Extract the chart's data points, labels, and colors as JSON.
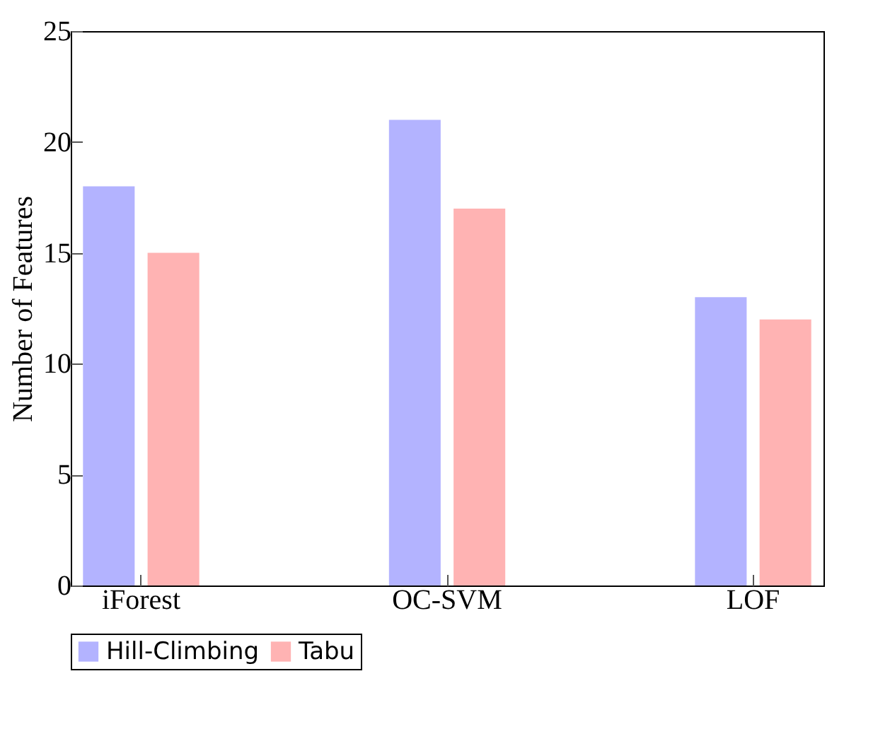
{
  "chart_data": {
    "type": "bar",
    "ylabel": "Number of Features",
    "categories": [
      "iForest",
      "OC-SVM",
      "LOF"
    ],
    "series": [
      {
        "name": "Hill-Climbing",
        "color": "#b3b3ff",
        "values": [
          18,
          21,
          13
        ]
      },
      {
        "name": "Tabu",
        "color": "#ffb3b3",
        "values": [
          15,
          17,
          12
        ]
      }
    ],
    "ylim": [
      0,
      25
    ],
    "yticks": [
      0,
      5,
      10,
      15,
      20,
      25
    ],
    "grid": false,
    "legend": "bottom"
  }
}
